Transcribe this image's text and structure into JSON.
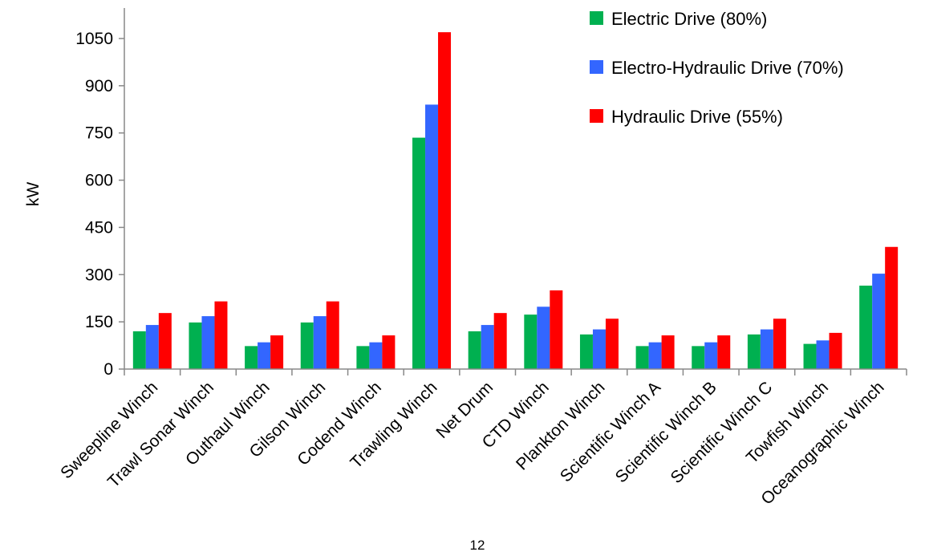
{
  "page_number": "12",
  "chart_data": {
    "type": "bar",
    "title": "",
    "xlabel": "",
    "ylabel": "kW",
    "ylim": [
      0,
      1150
    ],
    "yticks": [
      0,
      150,
      300,
      450,
      600,
      750,
      900,
      1050
    ],
    "grid": false,
    "legend_position": "top-right",
    "categories": [
      "Sweepline Winch",
      "Trawl Sonar Winch",
      "Outhaul Winch",
      "Gilson Winch",
      "Codend Winch",
      "Trawling Winch",
      "Net Drum",
      "CTD Winch",
      "Plankton Winch",
      "Scientific Winch A",
      "Scientific Winch B",
      "Scientific Winch C",
      "Towfish Winch",
      "Oceanographic Winch"
    ],
    "series": [
      {
        "name": "Electric Drive (80%)",
        "color": "#00B050",
        "values": [
          120,
          148,
          73,
          148,
          73,
          735,
          120,
          173,
          110,
          73,
          73,
          110,
          80,
          265
        ]
      },
      {
        "name": "Electro-Hydraulic Drive (70%)",
        "color": "#3366FF",
        "values": [
          140,
          168,
          85,
          168,
          85,
          840,
          140,
          198,
          126,
          85,
          85,
          126,
          91,
          303
        ]
      },
      {
        "name": "Hydraulic Drive (55%)",
        "color": "#FF0000",
        "values": [
          178,
          215,
          107,
          215,
          107,
          1070,
          178,
          250,
          160,
          107,
          107,
          160,
          115,
          388
        ]
      }
    ]
  }
}
